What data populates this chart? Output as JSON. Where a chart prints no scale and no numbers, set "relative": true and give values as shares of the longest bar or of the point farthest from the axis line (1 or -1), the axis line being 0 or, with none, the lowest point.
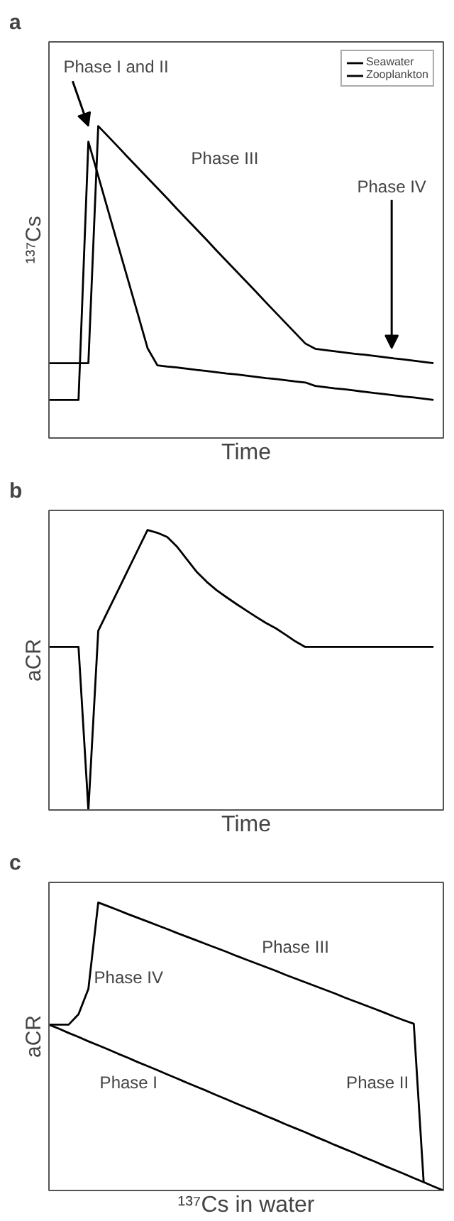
{
  "chart_data": [
    {
      "type": "line",
      "title": "a",
      "xlabel": "Time",
      "ylabel": "¹³⁷Cs",
      "relative": true,
      "legend": "top right",
      "categories": [
        null,
        null,
        null,
        null,
        null,
        null,
        null,
        null,
        null,
        null,
        null,
        null,
        null,
        null,
        null,
        null,
        null,
        null,
        null,
        null,
        null,
        null,
        null,
        null,
        null,
        null,
        null,
        null,
        null,
        null,
        null,
        null,
        null,
        null,
        null,
        null,
        null,
        null,
        null,
        null,
        null
      ],
      "series": [
        {
          "name": "Seawater",
          "color": "#000000",
          "values": [
            0.122,
            0.122,
            0.122,
            0.122,
            0.95,
            0.84,
            0.729,
            0.619,
            0.509,
            0.399,
            0.288,
            0.233,
            0.229,
            0.226,
            0.222,
            0.218,
            0.215,
            0.211,
            0.207,
            0.204,
            0.2,
            0.196,
            0.192,
            0.189,
            0.185,
            0.181,
            0.178,
            0.167,
            0.163,
            0.159,
            0.156,
            0.152,
            0.148,
            0.144,
            0.141,
            0.137,
            0.133,
            0.13,
            0.126,
            0.122,
            null
          ]
        },
        {
          "name": "Zooplankton",
          "color": "#000000",
          "values": [
            0.24,
            0.24,
            0.24,
            0.24,
            0.24,
            1.0,
            0.967,
            0.934,
            0.9,
            0.867,
            0.834,
            0.801,
            0.768,
            0.734,
            0.701,
            0.668,
            0.635,
            0.601,
            0.568,
            0.535,
            0.502,
            0.469,
            0.435,
            0.402,
            0.369,
            0.336,
            0.303,
            0.286,
            0.282,
            0.278,
            0.274,
            0.27,
            0.267,
            0.263,
            0.259,
            0.255,
            0.252,
            0.248,
            0.244,
            0.24,
            null
          ]
        }
      ],
      "annotations": [
        "Phase I and II",
        "Phase III",
        "Phase IV"
      ]
    },
    {
      "type": "line",
      "title": "b",
      "xlabel": "Time",
      "ylabel": "aCR",
      "relative": true,
      "categories": [
        null,
        null,
        null,
        null,
        null,
        null,
        null,
        null,
        null,
        null,
        null,
        null,
        null,
        null,
        null,
        null,
        null,
        null,
        null,
        null,
        null,
        null,
        null,
        null,
        null,
        null,
        null,
        null,
        null,
        null,
        null,
        null,
        null,
        null,
        null,
        null,
        null,
        null,
        null,
        null,
        null
      ],
      "series": [
        {
          "color": "#000000",
          "values": [
            0.582,
            0.582,
            0.582,
            0.582,
            0,
            0.64,
            0.712,
            0.784,
            0.856,
            0.928,
            1.0,
            0.99,
            0.975,
            0.94,
            0.895,
            0.85,
            0.815,
            0.785,
            0.76,
            0.736,
            0.713,
            0.69,
            0.668,
            0.649,
            0.626,
            0.602,
            0.582,
            0.582,
            0.582,
            0.582,
            0.582,
            0.582,
            0.582,
            0.582,
            0.582,
            0.582,
            0.582,
            0.582,
            0.582,
            0.582,
            null
          ]
        }
      ]
    },
    {
      "type": "line",
      "title": "c",
      "xlabel": "¹³⁷Cs in water",
      "ylabel": "aCR",
      "relative": true,
      "categories": [
        null,
        null,
        null,
        null,
        null,
        null,
        null,
        null,
        null,
        null,
        null,
        null,
        null,
        null,
        null,
        null,
        null,
        null,
        null,
        null,
        null,
        null,
        null,
        null,
        null,
        null,
        null,
        null,
        null,
        null,
        null,
        null,
        null,
        null,
        null,
        null,
        null,
        null,
        null,
        null,
        null
      ],
      "series": [
        {
          "color": "#000000",
          "values": [
            0.576,
            0.576,
            0.576,
            0.612,
            0.7,
            1.0,
            0.987,
            0.974,
            0.96,
            0.947,
            0.934,
            0.921,
            0.908,
            0.894,
            0.881,
            0.868,
            0.855,
            0.842,
            0.829,
            0.815,
            0.802,
            0.789,
            0.776,
            0.763,
            0.749,
            0.736,
            0.723,
            0.71,
            0.697,
            0.684,
            0.67,
            0.657,
            0.644,
            0.631,
            0.618,
            0.604,
            0.591,
            0.579,
            0.03,
            null,
            null
          ]
        },
        {
          "color": "#000000",
          "values": [
            0.576,
            0.562,
            0.547,
            0.533,
            0.518,
            0.504,
            0.49,
            0.475,
            0.461,
            0.446,
            0.432,
            0.418,
            0.403,
            0.389,
            0.374,
            0.36,
            0.346,
            0.331,
            0.317,
            0.302,
            0.288,
            0.274,
            0.259,
            0.245,
            0.23,
            0.216,
            0.202,
            0.187,
            0.173,
            0.158,
            0.144,
            0.13,
            0.115,
            0.101,
            0.086,
            0.072,
            0.058,
            0.043,
            0.029,
            0.014,
            0
          ]
        }
      ],
      "annotations": [
        "Phase IV",
        "Phase III",
        "Phase I",
        "Phase II"
      ]
    }
  ]
}
